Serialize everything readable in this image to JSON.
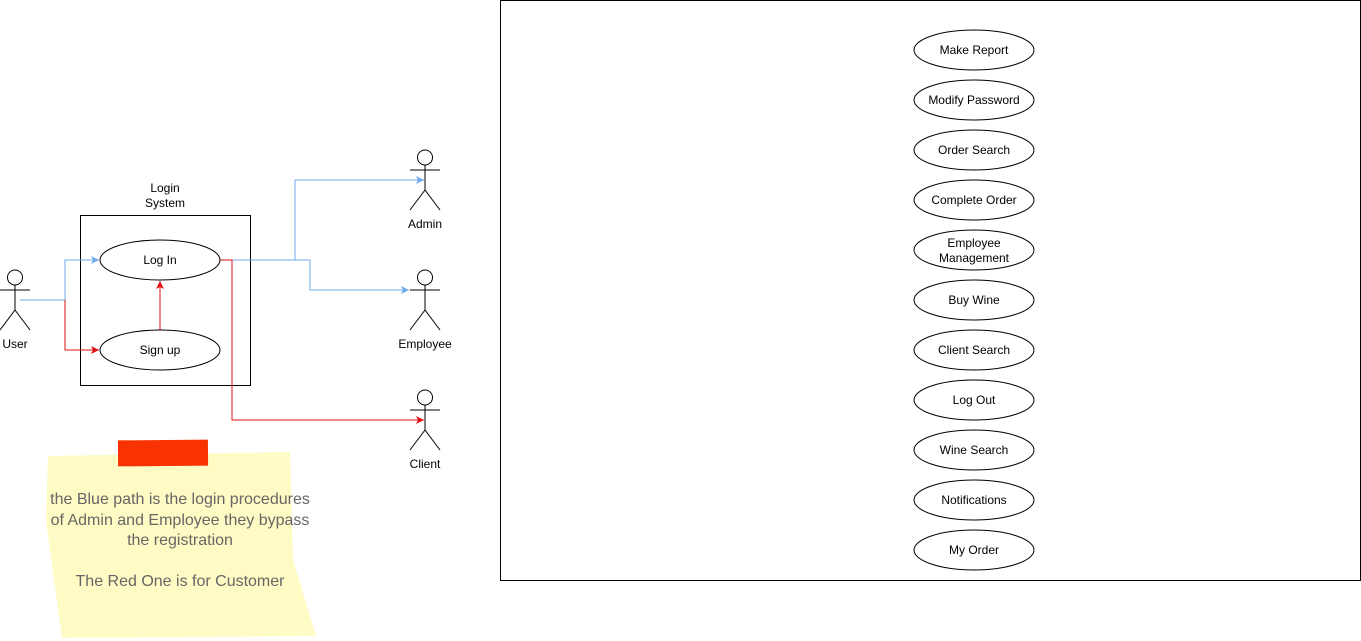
{
  "colors": {
    "blue_path": "#6fa8ec",
    "red_path": "#e01010",
    "note_background": "#fffbc4",
    "note_tape": "#f83200",
    "note_text": "#666666"
  },
  "login_system": {
    "title_line1": "Login",
    "title_line2": "System",
    "login_usecase": "Log In",
    "signup_usecase": "Sign up"
  },
  "actors": {
    "user": "User",
    "admin": "Admin",
    "employee": "Employee",
    "client": "Client"
  },
  "note": {
    "line1": "the Blue path is the login procedures",
    "line2": "of Admin and Employee they bypass",
    "line3": "the registration",
    "line4": "The Red One is for Customer"
  },
  "use_cases": [
    {
      "label1": "Make Report",
      "label2": ""
    },
    {
      "label1": "Modify Password",
      "label2": ""
    },
    {
      "label1": "Order Search",
      "label2": ""
    },
    {
      "label1": "Complete Order",
      "label2": ""
    },
    {
      "label1": "Employee",
      "label2": "Management"
    },
    {
      "label1": "Buy Wine",
      "label2": ""
    },
    {
      "label1": "Client Search",
      "label2": ""
    },
    {
      "label1": "Log Out",
      "label2": ""
    },
    {
      "label1": "Wine Search",
      "label2": ""
    },
    {
      "label1": "Notifications",
      "label2": ""
    },
    {
      "label1": "My Order",
      "label2": ""
    }
  ]
}
